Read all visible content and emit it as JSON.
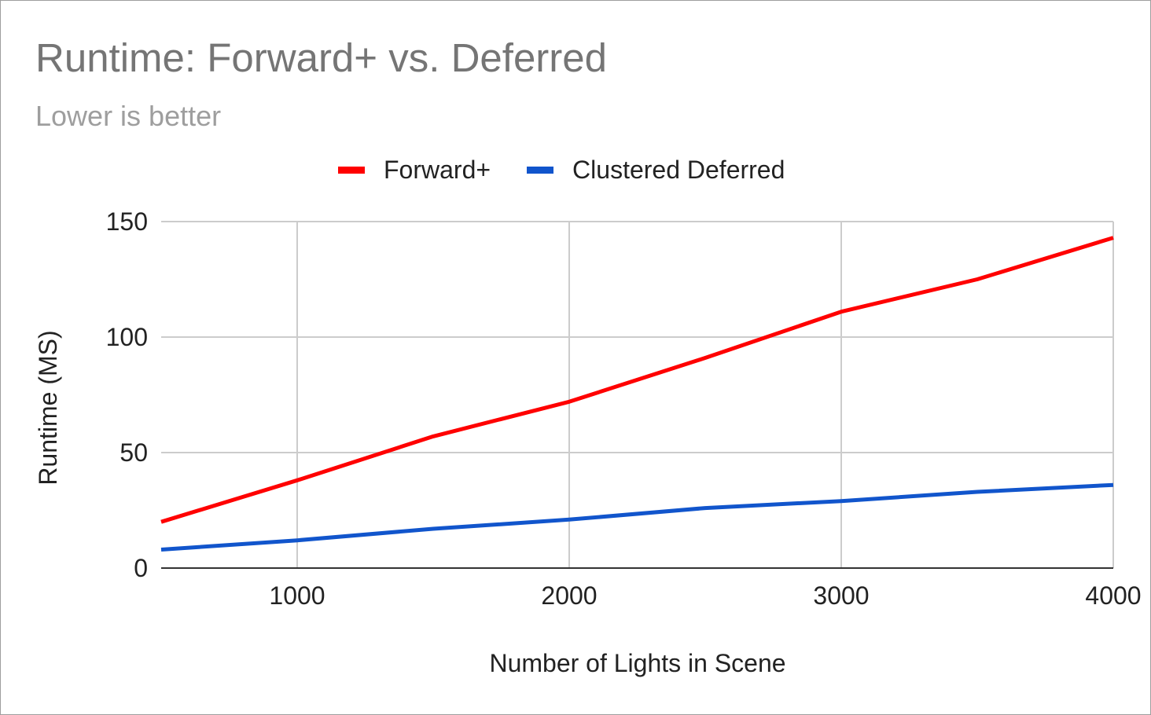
{
  "chart_data": {
    "type": "line",
    "title": "Runtime: Forward+ vs. Deferred",
    "subtitle": "Lower is better",
    "xlabel": "Number of Lights in Scene",
    "ylabel": "Runtime (MS)",
    "xlim": [
      500,
      4000
    ],
    "ylim": [
      0,
      150
    ],
    "x_ticks": [
      1000,
      2000,
      3000,
      4000
    ],
    "y_ticks": [
      0,
      50,
      100,
      150
    ],
    "grid": true,
    "legend": "top-center",
    "x": [
      500,
      1000,
      1500,
      2000,
      2500,
      3000,
      3500,
      4000
    ],
    "series": [
      {
        "name": "Forward+",
        "color": "#ff0000",
        "values": [
          20,
          38,
          57,
          72,
          91,
          111,
          125,
          143
        ]
      },
      {
        "name": "Clustered Deferred",
        "color": "#1155cc",
        "values": [
          8,
          12,
          17,
          21,
          26,
          29,
          33,
          36
        ]
      }
    ]
  }
}
